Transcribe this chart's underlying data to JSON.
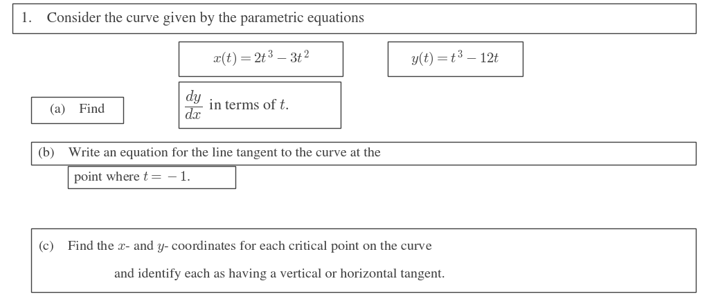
{
  "background_color": "#ffffff",
  "text_color": "#404040",
  "figsize": [
    10.24,
    4.32
  ],
  "dpi": 100,
  "title_text": "1.    Consider the curve given by the parametric equations",
  "eq1": "$x(t) = 2t^3 - 3t^2$",
  "eq2": "$y(t) = t^3 - 12t$",
  "part_a_label": "(a)    Find",
  "part_a_eq": "$\\dfrac{dy}{dx}\\,$ in terms of $t$.",
  "part_b_line1": "(b)    Write an equation for the line tangent to the curve at the",
  "part_b_line2": "point where $t = -1$.",
  "part_c_line1": "(c)    Find the $x$- and $y$- coordinates for each critical point on the curve",
  "part_c_line2": "and identify each as having a vertical or horizontal tangent.",
  "font_size_title": 15.5,
  "font_size_eq": 15,
  "font_size_parts": 14.5,
  "font_size_parts_b": 14.5
}
